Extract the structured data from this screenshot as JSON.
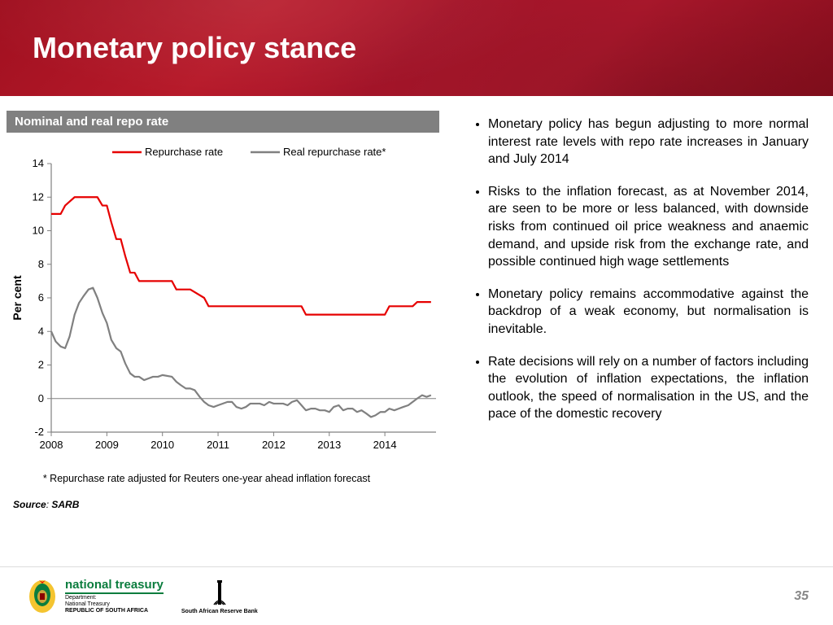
{
  "header": {
    "title": "Monetary policy stance"
  },
  "chart": {
    "type": "line",
    "panel_title": "Nominal and real repo rate",
    "legend": {
      "series1": "Repurchase rate",
      "series2": "Real repurchase rate*",
      "position": "top-center"
    },
    "y_axis": {
      "label": "Per cent",
      "ylim": [
        -2,
        14
      ],
      "ticks": [
        -2,
        0,
        2,
        4,
        6,
        8,
        10,
        12,
        14
      ],
      "label_fontsize": 13,
      "tick_fontsize": 13
    },
    "x_axis": {
      "ticks": [
        "2008",
        "2009",
        "2010",
        "2011",
        "2012",
        "2013",
        "2014"
      ],
      "tick_fontsize": 13
    },
    "series1": {
      "name": "Repurchase rate",
      "color": "#e60000",
      "line_width": 2.2,
      "data": [
        [
          2008.0,
          11.0
        ],
        [
          2008.08,
          11.0
        ],
        [
          2008.17,
          11.0
        ],
        [
          2008.25,
          11.5
        ],
        [
          2008.42,
          12.0
        ],
        [
          2008.5,
          12.0
        ],
        [
          2008.67,
          12.0
        ],
        [
          2008.83,
          12.0
        ],
        [
          2008.92,
          11.5
        ],
        [
          2009.0,
          11.5
        ],
        [
          2009.08,
          10.5
        ],
        [
          2009.17,
          9.5
        ],
        [
          2009.25,
          9.5
        ],
        [
          2009.33,
          8.5
        ],
        [
          2009.42,
          7.5
        ],
        [
          2009.5,
          7.5
        ],
        [
          2009.58,
          7.0
        ],
        [
          2009.67,
          7.0
        ],
        [
          2009.75,
          7.0
        ],
        [
          2009.83,
          7.0
        ],
        [
          2009.92,
          7.0
        ],
        [
          2010.0,
          7.0
        ],
        [
          2010.17,
          7.0
        ],
        [
          2010.25,
          6.5
        ],
        [
          2010.5,
          6.5
        ],
        [
          2010.75,
          6.0
        ],
        [
          2010.83,
          5.5
        ],
        [
          2011.0,
          5.5
        ],
        [
          2011.5,
          5.5
        ],
        [
          2012.0,
          5.5
        ],
        [
          2012.5,
          5.5
        ],
        [
          2012.58,
          5.0
        ],
        [
          2012.67,
          5.0
        ],
        [
          2013.0,
          5.0
        ],
        [
          2013.5,
          5.0
        ],
        [
          2014.0,
          5.0
        ],
        [
          2014.08,
          5.5
        ],
        [
          2014.25,
          5.5
        ],
        [
          2014.5,
          5.5
        ],
        [
          2014.58,
          5.75
        ],
        [
          2014.83,
          5.75
        ]
      ]
    },
    "series2": {
      "name": "Real repurchase rate*",
      "color": "#808080",
      "line_width": 2.2,
      "data": [
        [
          2008.0,
          4.0
        ],
        [
          2008.08,
          3.4
        ],
        [
          2008.17,
          3.1
        ],
        [
          2008.25,
          3.0
        ],
        [
          2008.33,
          3.7
        ],
        [
          2008.42,
          5.0
        ],
        [
          2008.5,
          5.7
        ],
        [
          2008.58,
          6.1
        ],
        [
          2008.67,
          6.5
        ],
        [
          2008.75,
          6.6
        ],
        [
          2008.83,
          6.0
        ],
        [
          2008.92,
          5.1
        ],
        [
          2009.0,
          4.5
        ],
        [
          2009.08,
          3.5
        ],
        [
          2009.17,
          3.0
        ],
        [
          2009.25,
          2.8
        ],
        [
          2009.33,
          2.1
        ],
        [
          2009.42,
          1.5
        ],
        [
          2009.5,
          1.3
        ],
        [
          2009.58,
          1.3
        ],
        [
          2009.67,
          1.1
        ],
        [
          2009.75,
          1.2
        ],
        [
          2009.83,
          1.3
        ],
        [
          2009.92,
          1.3
        ],
        [
          2010.0,
          1.4
        ],
        [
          2010.17,
          1.3
        ],
        [
          2010.25,
          1.0
        ],
        [
          2010.33,
          0.8
        ],
        [
          2010.42,
          0.6
        ],
        [
          2010.5,
          0.6
        ],
        [
          2010.58,
          0.5
        ],
        [
          2010.67,
          0.1
        ],
        [
          2010.75,
          -0.2
        ],
        [
          2010.83,
          -0.4
        ],
        [
          2010.92,
          -0.5
        ],
        [
          2011.0,
          -0.4
        ],
        [
          2011.17,
          -0.2
        ],
        [
          2011.25,
          -0.2
        ],
        [
          2011.33,
          -0.5
        ],
        [
          2011.42,
          -0.6
        ],
        [
          2011.5,
          -0.5
        ],
        [
          2011.58,
          -0.3
        ],
        [
          2011.67,
          -0.3
        ],
        [
          2011.75,
          -0.3
        ],
        [
          2011.83,
          -0.4
        ],
        [
          2011.92,
          -0.2
        ],
        [
          2012.0,
          -0.3
        ],
        [
          2012.17,
          -0.3
        ],
        [
          2012.25,
          -0.4
        ],
        [
          2012.33,
          -0.2
        ],
        [
          2012.42,
          -0.1
        ],
        [
          2012.5,
          -0.4
        ],
        [
          2012.58,
          -0.7
        ],
        [
          2012.67,
          -0.6
        ],
        [
          2012.75,
          -0.6
        ],
        [
          2012.83,
          -0.7
        ],
        [
          2012.92,
          -0.7
        ],
        [
          2013.0,
          -0.8
        ],
        [
          2013.08,
          -0.5
        ],
        [
          2013.17,
          -0.4
        ],
        [
          2013.25,
          -0.7
        ],
        [
          2013.33,
          -0.6
        ],
        [
          2013.42,
          -0.6
        ],
        [
          2013.5,
          -0.8
        ],
        [
          2013.58,
          -0.7
        ],
        [
          2013.67,
          -0.9
        ],
        [
          2013.75,
          -1.1
        ],
        [
          2013.83,
          -1.0
        ],
        [
          2013.92,
          -0.8
        ],
        [
          2014.0,
          -0.8
        ],
        [
          2014.08,
          -0.6
        ],
        [
          2014.17,
          -0.7
        ],
        [
          2014.25,
          -0.6
        ],
        [
          2014.33,
          -0.5
        ],
        [
          2014.42,
          -0.4
        ],
        [
          2014.5,
          -0.2
        ],
        [
          2014.58,
          0.0
        ],
        [
          2014.67,
          0.2
        ],
        [
          2014.75,
          0.1
        ],
        [
          2014.83,
          0.2
        ]
      ]
    },
    "footnote": "* Repurchase rate adjusted for Reuters one-year ahead inflation forecast",
    "source_label": "Source",
    "source_value": "SARB",
    "background_color": "#ffffff",
    "axis_color": "#808080",
    "tick_color": "#808080"
  },
  "bullets": [
    "Monetary policy has begun adjusting to more normal interest rate levels with repo rate increases in January and July 2014",
    "Risks to the inflation forecast, as at November 2014, are seen to be more or less balanced, with downside risks from continued oil price weakness and anaemic demand, and upside risk from the exchange rate, and possible continued high wage settlements",
    "Monetary policy remains accommodative against the backdrop of a weak economy,  but normalisation is inevitable.",
    "Rate decisions will rely on a number of factors including the evolution of inflation expectations, the inflation outlook, the speed of normalisation in the US, and the pace of the domestic recovery"
  ],
  "footer": {
    "nt_name": "national treasury",
    "nt_dept1": "Department:",
    "nt_dept2": "National Treasury",
    "nt_dept3": "REPUBLIC OF SOUTH AFRICA",
    "sarb_name": "South African Reserve Bank",
    "page_number": "35"
  }
}
